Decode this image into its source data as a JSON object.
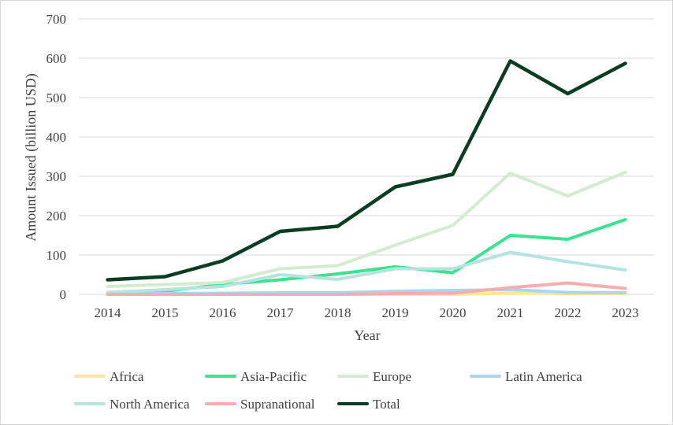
{
  "chart_data": {
    "type": "line",
    "title": "",
    "xlabel": "Year",
    "ylabel": "Amount Issued (billion USD)",
    "ylim": [
      0,
      700
    ],
    "yticks": [
      "0",
      "100",
      "200",
      "300",
      "400",
      "500",
      "600",
      "700"
    ],
    "categories": [
      "2014",
      "2015",
      "2016",
      "2017",
      "2018",
      "2019",
      "2020",
      "2021",
      "2022",
      "2023"
    ],
    "grid": "horizontal",
    "legend_position": "bottom",
    "series": [
      {
        "name": "Africa",
        "color": "#fde89a",
        "values": [
          0,
          0,
          0,
          0,
          0,
          0,
          0,
          3,
          2,
          2
        ]
      },
      {
        "name": "Asia-Pacific",
        "color": "#3ce38f",
        "values": [
          5,
          8,
          25,
          37,
          52,
          70,
          55,
          150,
          140,
          190
        ]
      },
      {
        "name": "Europe",
        "color": "#d3ebcf",
        "values": [
          20,
          25,
          30,
          65,
          73,
          125,
          175,
          308,
          250,
          310
        ]
      },
      {
        "name": "Latin America",
        "color": "#a8d8f0",
        "values": [
          1,
          2,
          3,
          4,
          4,
          8,
          10,
          12,
          5,
          4
        ]
      },
      {
        "name": "North America",
        "color": "#b4e4e0",
        "values": [
          5,
          12,
          20,
          50,
          38,
          65,
          65,
          107,
          83,
          62
        ]
      },
      {
        "name": "Supranational",
        "color": "#f4aeae",
        "values": [
          0,
          0,
          0,
          0,
          0,
          2,
          3,
          17,
          29,
          15
        ]
      },
      {
        "name": "Total",
        "color": "#0a3d22",
        "values": [
          37,
          45,
          85,
          160,
          173,
          273,
          305,
          593,
          510,
          587
        ]
      }
    ]
  }
}
